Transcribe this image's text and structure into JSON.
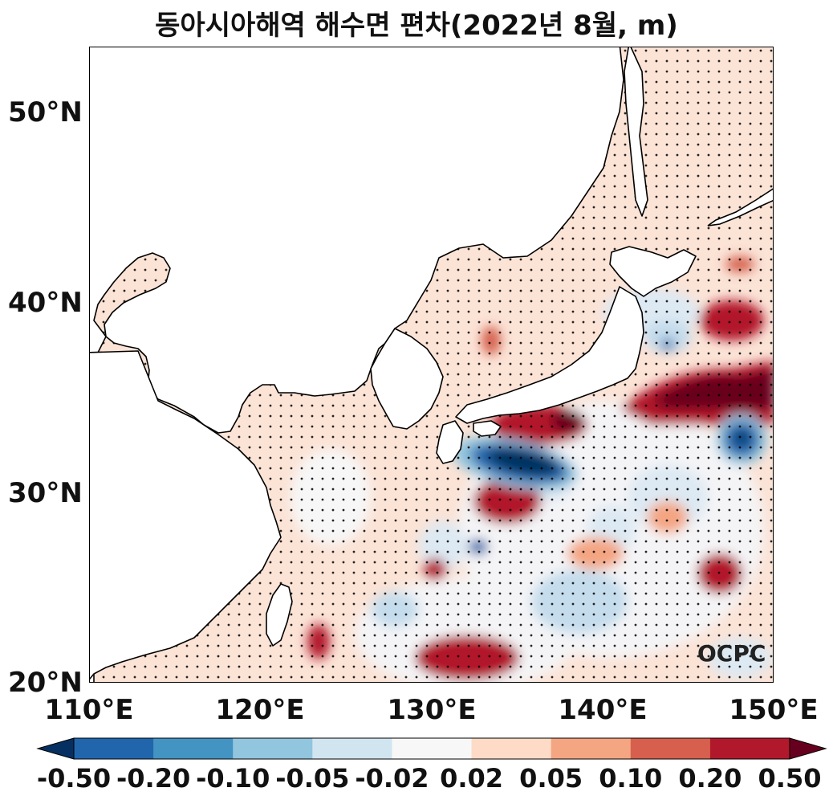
{
  "title": "동아시아해역 해수면 편차(2022년 8월, m)",
  "map": {
    "lat_ticks": [
      "50°N",
      "40°N",
      "30°N",
      "20°N"
    ],
    "lon_ticks": [
      "110°E",
      "120°E",
      "130°E",
      "140°E",
      "150°E"
    ],
    "logo": "OCPC",
    "land_color": "#ffffff",
    "coastline_color": "#000000"
  },
  "colorbar": {
    "labels": [
      "-0.50",
      "-0.20",
      "-0.10",
      "-0.05",
      "-0.02",
      "0.02",
      "0.05",
      "0.10",
      "0.20",
      "0.50"
    ],
    "colors": [
      "#053061",
      "#2166ac",
      "#4393c3",
      "#92c5de",
      "#d1e5f0",
      "#f7f7f7",
      "#fddbc7",
      "#f4a582",
      "#d6604d",
      "#b2182b",
      "#67001f"
    ]
  }
}
